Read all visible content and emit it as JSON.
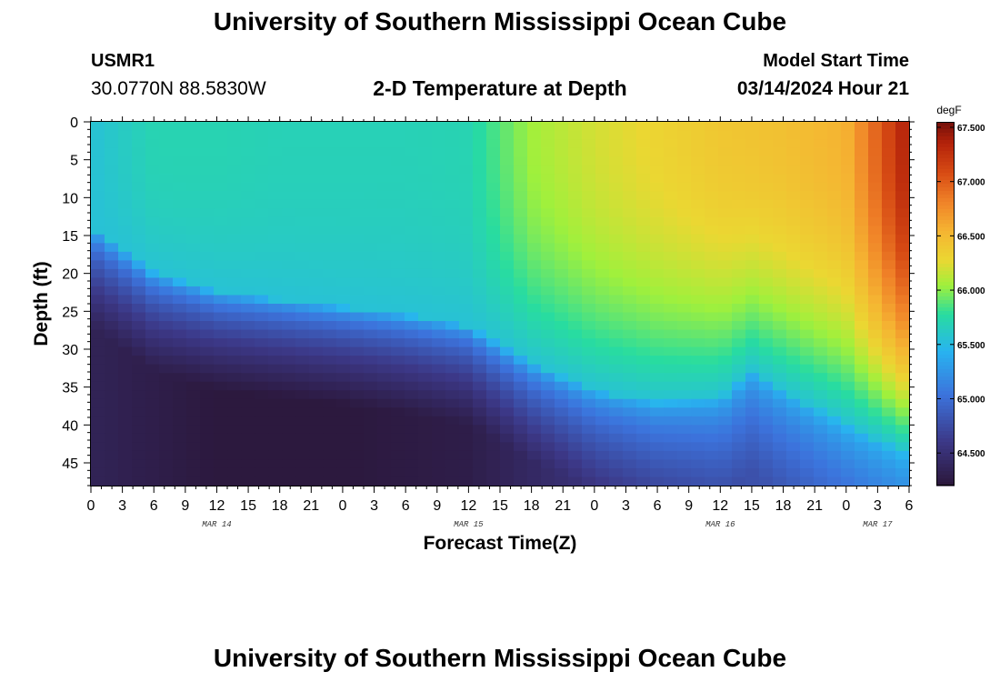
{
  "header": {
    "title": "University of Southern Mississippi Ocean Cube",
    "station": "USMR1",
    "coords": "30.0770N  88.5830W",
    "model_label": "Model Start Time",
    "model_time": "03/14/2024 Hour 21"
  },
  "footer": {
    "title": "University of Southern Mississippi Ocean Cube"
  },
  "chart_data": {
    "type": "heatmap",
    "title": "2-D Temperature at Depth",
    "xlabel": "Forecast Time(Z)",
    "ylabel": "Depth (ft)",
    "x_hours_range": [
      0,
      78
    ],
    "x_tick_labels": [
      "0",
      "3",
      "6",
      "9",
      "12",
      "15",
      "18",
      "21",
      "0",
      "3",
      "6",
      "9",
      "12",
      "15",
      "18",
      "21",
      "0",
      "3",
      "6",
      "9",
      "12",
      "15",
      "18",
      "21",
      "0",
      "3",
      "6"
    ],
    "date_labels": [
      {
        "label": "MAR 14",
        "hour": 12
      },
      {
        "label": "MAR 15",
        "hour": 36
      },
      {
        "label": "MAR 16",
        "hour": 60
      },
      {
        "label": "MAR 17",
        "hour": 75
      }
    ],
    "ylim": [
      0,
      48
    ],
    "y_ticks": [
      0,
      5,
      10,
      15,
      20,
      25,
      30,
      35,
      40,
      45
    ],
    "colorbar": {
      "unit": "degF",
      "range": [
        64.2,
        67.55
      ],
      "ticks": [
        "64.500",
        "65.000",
        "65.500",
        "66.000",
        "66.500",
        "67.000",
        "67.500"
      ]
    },
    "isotherm_depth_ft": {
      "hours": [
        0,
        6,
        12,
        18,
        24,
        30,
        36,
        42,
        48,
        54,
        60,
        63,
        66,
        72,
        78
      ],
      "depth": [
        14,
        20,
        22.5,
        23.5,
        24.5,
        25.5,
        27,
        32,
        35.5,
        37,
        36.5,
        33,
        35.5,
        40,
        44
      ]
    },
    "surface_temp_degF": {
      "hours": [
        0,
        6,
        12,
        18,
        24,
        30,
        36,
        42,
        48,
        54,
        60,
        66,
        72,
        78
      ],
      "temp": [
        65.55,
        65.7,
        65.7,
        65.68,
        65.68,
        65.68,
        65.7,
        66.05,
        66.2,
        66.3,
        66.4,
        66.45,
        66.55,
        67.4
      ]
    },
    "deep_temp_degF": {
      "hours": [
        0,
        12,
        24,
        36,
        48,
        60,
        72,
        78
      ],
      "temp": [
        64.35,
        64.22,
        64.22,
        64.28,
        64.55,
        64.75,
        64.9,
        65.0
      ]
    }
  }
}
